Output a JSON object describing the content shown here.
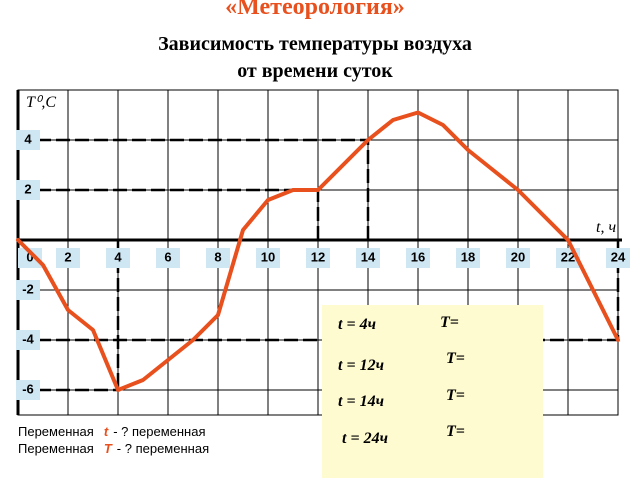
{
  "chart_data": {
    "type": "line",
    "title": "«Метеорология»",
    "subtitle": [
      "Зависимость температуры воздуха",
      "от времени суток"
    ],
    "y_label": "T⁰,C",
    "x_label": "t, ч",
    "x": [
      0,
      1,
      2,
      3,
      4,
      5,
      6,
      7,
      8,
      9,
      10,
      11,
      12,
      13,
      14,
      15,
      16,
      17,
      18,
      19,
      20,
      21,
      22,
      23,
      24
    ],
    "values": [
      0,
      -1,
      -2.8,
      -3.6,
      -6,
      -5.6,
      -4.8,
      -4,
      -3,
      0.4,
      1.6,
      2,
      2,
      3,
      4,
      4.8,
      5.1,
      4.6,
      3.6,
      2.8,
      2,
      1,
      0,
      -2,
      -4
    ],
    "color": "#e8501e",
    "xlim": [
      0,
      24
    ],
    "ylim": [
      -7,
      6
    ],
    "xticks": [
      0,
      2,
      4,
      6,
      8,
      10,
      12,
      14,
      16,
      18,
      20,
      22,
      24
    ],
    "yticks": [
      -6,
      -4,
      -2,
      2,
      4
    ],
    "guides_x": [
      4,
      12,
      14,
      24
    ],
    "grid": true,
    "questions": [
      {
        "t": "t = 4ч",
        "T": "T="
      },
      {
        "t": "t = 12ч",
        "T": "T="
      },
      {
        "t": "t = 14ч",
        "T": "T="
      },
      {
        "t": "t = 24ч",
        "T": "T="
      }
    ],
    "notes": [
      [
        "Переменная",
        "t",
        "- ? переменная"
      ],
      [
        "Переменная",
        "T",
        "- ? переменная"
      ]
    ]
  }
}
